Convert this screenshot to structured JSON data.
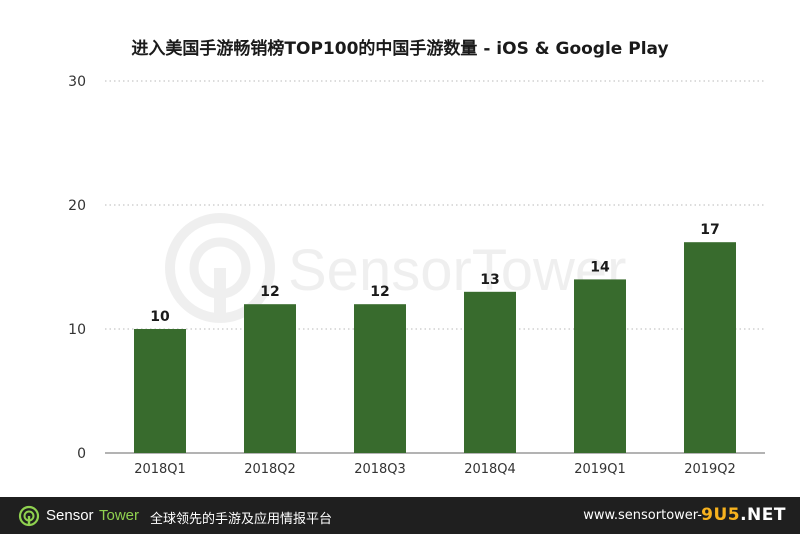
{
  "chart_data": {
    "type": "bar",
    "title": "进入美国手游畅销榜TOP100的中国手游数量 - iOS & Google Play",
    "categories": [
      "2018Q1",
      "2018Q2",
      "2018Q3",
      "2018Q4",
      "2019Q1",
      "2019Q2"
    ],
    "values": [
      10,
      12,
      12,
      13,
      14,
      17
    ],
    "ylim": [
      0,
      30
    ],
    "yticks": [
      0,
      10,
      20,
      30
    ],
    "xlabel": "",
    "ylabel": "",
    "grid": true,
    "bar_color": "#386b2d",
    "data_labels": true
  },
  "watermark": {
    "text": "SensorTower"
  },
  "footer": {
    "brand_part1": "Sensor",
    "brand_part2": "Tower",
    "tagline": "全球领先的手游及应用情报平台",
    "url": "www.sensortower-",
    "badge_part1": "9U5",
    "badge_part2": ".NET",
    "brand_accent": "#8fd14f"
  }
}
